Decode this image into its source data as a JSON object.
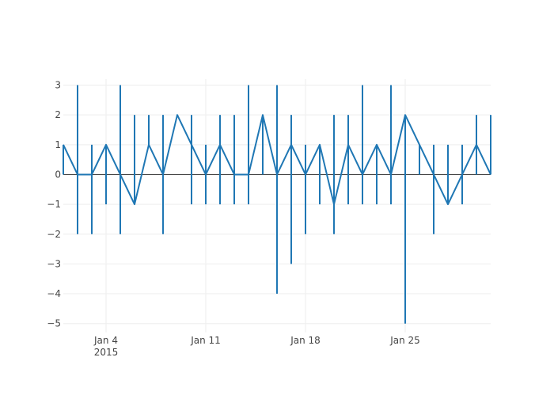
{
  "chart_data": {
    "type": "line",
    "title": "",
    "xlabel": "",
    "ylabel": "",
    "x": [
      "2015-01-01",
      "2015-01-02",
      "2015-01-03",
      "2015-01-04",
      "2015-01-05",
      "2015-01-06",
      "2015-01-07",
      "2015-01-08",
      "2015-01-09",
      "2015-01-10",
      "2015-01-11",
      "2015-01-12",
      "2015-01-13",
      "2015-01-14",
      "2015-01-15",
      "2015-01-16",
      "2015-01-17",
      "2015-01-18",
      "2015-01-19",
      "2015-01-20",
      "2015-01-21",
      "2015-01-22",
      "2015-01-23",
      "2015-01-24",
      "2015-01-25",
      "2015-01-26",
      "2015-01-27",
      "2015-01-28",
      "2015-01-29",
      "2015-01-30",
      "2015-01-31"
    ],
    "series": [
      {
        "values": [
          1,
          0,
          0,
          1,
          0,
          -1,
          1,
          0,
          2,
          1,
          0,
          1,
          0,
          0,
          2,
          0,
          1,
          0,
          1,
          -1,
          1,
          0,
          1,
          0,
          2,
          1,
          0,
          -1,
          0,
          1,
          0
        ],
        "error_low": [
          1,
          2,
          2,
          2,
          2,
          0,
          0,
          2,
          0,
          2,
          1,
          2,
          1,
          1,
          2,
          4,
          4,
          2,
          2,
          1,
          2,
          1,
          2,
          1,
          7,
          1,
          2,
          0,
          1,
          1,
          0
        ],
        "error_high": [
          0,
          3,
          1,
          0,
          3,
          3,
          1,
          2,
          0,
          1,
          1,
          1,
          2,
          3,
          0,
          3,
          1,
          1,
          0,
          3,
          1,
          3,
          0,
          3,
          0,
          0,
          1,
          2,
          1,
          1,
          2
        ],
        "color": "#1f77b4"
      }
    ],
    "x_ticks": [
      {
        "date": "2015-01-04",
        "label": "Jan 4",
        "sublabel": "2015"
      },
      {
        "date": "2015-01-11",
        "label": "Jan 11",
        "sublabel": ""
      },
      {
        "date": "2015-01-18",
        "label": "Jan 18",
        "sublabel": ""
      },
      {
        "date": "2015-01-25",
        "label": "Jan 25",
        "sublabel": ""
      }
    ],
    "y_ticks": [
      3,
      2,
      1,
      0,
      -1,
      -2,
      -3,
      -4,
      -5
    ],
    "y_tick_labels": [
      "3",
      "2",
      "1",
      "0",
      "−1",
      "−2",
      "−3",
      "−4",
      "−5"
    ],
    "ylim": [
      -5.3,
      3.2
    ],
    "xlim": [
      "2015-01-01",
      "2015-01-31"
    ],
    "grid": true,
    "legend": "none"
  }
}
